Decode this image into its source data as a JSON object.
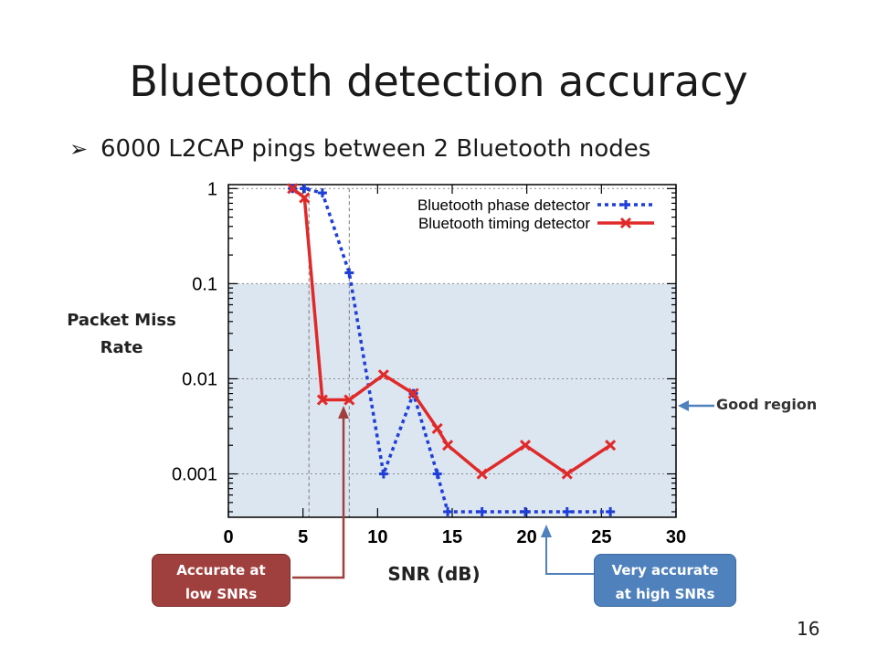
{
  "slide": {
    "title": "Bluetooth detection accuracy",
    "bullet_marker": "➢",
    "bullet": "6000 L2CAP pings between 2 Bluetooth nodes",
    "ylabel_line1": "Packet Miss",
    "ylabel_line2": "Rate",
    "xlabel": "SNR (dB)",
    "good_region_label": "Good region",
    "callout_low_line1": "Accurate at",
    "callout_low_line2": "low SNRs",
    "callout_high_line1": "Very accurate",
    "callout_high_line2": "at high SNRs",
    "page_number": "16",
    "colors": {
      "phase": "#1f3fd8",
      "timing": "#e02a2a",
      "good_region_fill": "#dce6f1",
      "callout_red": "#a0403e",
      "callout_blue": "#4f81bd",
      "arrow_blue": "#4f81bd"
    }
  },
  "chart_data": {
    "type": "line",
    "y_scale": "log",
    "xlim": [
      0,
      30
    ],
    "ylim": [
      0.00035,
      1.1
    ],
    "x_ticks": [
      "0",
      "5",
      "10",
      "15",
      "20",
      "25",
      "30"
    ],
    "x_tick_values": [
      0,
      5,
      10,
      15,
      20,
      25,
      30
    ],
    "y_ticks": [
      "1",
      "0.1",
      "0.01",
      "0.001"
    ],
    "y_tick_values": [
      1,
      0.1,
      0.01,
      0.001
    ],
    "xlabel": "SNR (dB)",
    "ylabel": "Packet Miss Rate",
    "legend_position": "top-right",
    "shaded_region": {
      "y_max": 0.1,
      "label": "Good region"
    },
    "reference_lines_x": [
      5.4,
      8.1
    ],
    "series": [
      {
        "name": "Bluetooth phase detector",
        "style": "dotted",
        "marker": "plus",
        "points": [
          [
            4.3,
            1.0
          ],
          [
            5.1,
            1.0
          ],
          [
            6.3,
            0.9
          ],
          [
            8.1,
            0.13
          ],
          [
            10.4,
            0.001
          ],
          [
            12.4,
            0.007
          ],
          [
            14.0,
            0.001
          ],
          [
            14.7,
            0.0004
          ],
          [
            17.0,
            0.0004
          ],
          [
            19.9,
            0.0004
          ],
          [
            22.7,
            0.0004
          ],
          [
            25.6,
            0.0004
          ]
        ]
      },
      {
        "name": "Bluetooth timing detector",
        "style": "solid",
        "marker": "x",
        "points": [
          [
            4.3,
            1.0
          ],
          [
            5.1,
            0.8
          ],
          [
            6.3,
            0.006
          ],
          [
            8.1,
            0.006
          ],
          [
            10.4,
            0.011
          ],
          [
            12.4,
            0.007
          ],
          [
            14.0,
            0.003
          ],
          [
            14.7,
            0.002
          ],
          [
            17.0,
            0.001
          ],
          [
            19.9,
            0.002
          ],
          [
            22.7,
            0.001
          ],
          [
            25.6,
            0.002
          ]
        ]
      }
    ]
  }
}
